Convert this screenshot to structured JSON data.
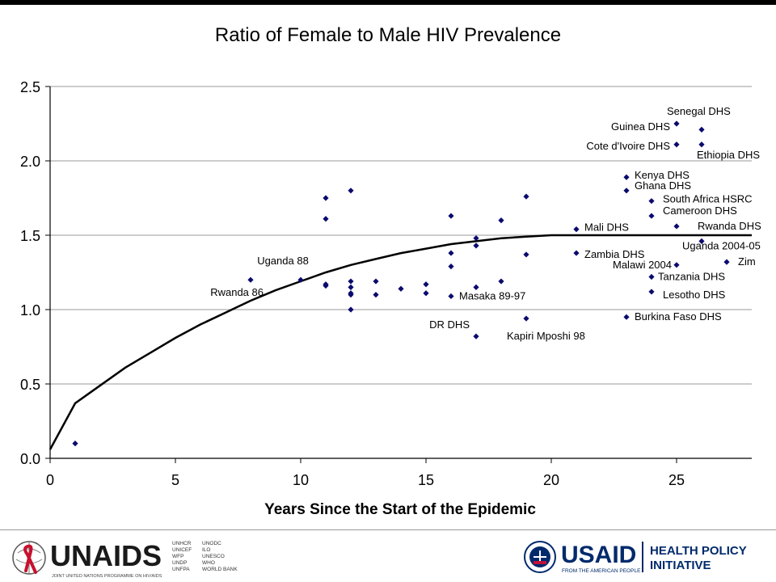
{
  "chart_data": {
    "type": "scatter",
    "title": "Ratio of Female to Male HIV Prevalence",
    "xlabel": "Years Since the Start of the Epidemic",
    "ylabel": "",
    "xlim": [
      0,
      28
    ],
    "ylim": [
      0,
      2.5
    ],
    "xticks": [
      "0",
      "5",
      "10",
      "15",
      "20",
      "25"
    ],
    "yticks": [
      "0.0",
      "0.5",
      "1.0",
      "1.5",
      "2.0",
      "2.5"
    ],
    "grid": "horizontal",
    "marker_color": "#0a0a6e",
    "points": [
      [
        1,
        0.1
      ],
      [
        8,
        1.2
      ],
      [
        10,
        1.2
      ],
      [
        11,
        1.75
      ],
      [
        11,
        1.61
      ],
      [
        11,
        1.17
      ],
      [
        11,
        1.16
      ],
      [
        12,
        1.8
      ],
      [
        12,
        1.19
      ],
      [
        12,
        1.15
      ],
      [
        12,
        1.11
      ],
      [
        12,
        1.1
      ],
      [
        12,
        1.0
      ],
      [
        13,
        1.19
      ],
      [
        13,
        1.1
      ],
      [
        14,
        1.14
      ],
      [
        15,
        1.17
      ],
      [
        15,
        1.11
      ],
      [
        16,
        1.63
      ],
      [
        16,
        1.38
      ],
      [
        16,
        1.29
      ],
      [
        16,
        1.09
      ],
      [
        17,
        1.48
      ],
      [
        17,
        1.43
      ],
      [
        17,
        1.15
      ],
      [
        17,
        0.82
      ],
      [
        18,
        1.6
      ],
      [
        18,
        1.19
      ],
      [
        19,
        1.76
      ],
      [
        19,
        1.37
      ],
      [
        19,
        0.94
      ],
      [
        21,
        1.54
      ],
      [
        21,
        1.38
      ],
      [
        23,
        1.89
      ],
      [
        23,
        1.8
      ],
      [
        23,
        0.95
      ],
      [
        24,
        1.73
      ],
      [
        24,
        1.63
      ],
      [
        24,
        1.22
      ],
      [
        24,
        1.12
      ],
      [
        25,
        2.25
      ],
      [
        25,
        2.11
      ],
      [
        25,
        1.56
      ],
      [
        25,
        1.3
      ],
      [
        26,
        2.21
      ],
      [
        26,
        2.11
      ],
      [
        26,
        1.46
      ],
      [
        27,
        1.32
      ]
    ],
    "trend_curve": [
      [
        0,
        0.06
      ],
      [
        1,
        0.37
      ],
      [
        2,
        0.49
      ],
      [
        3,
        0.61
      ],
      [
        4,
        0.71
      ],
      [
        5,
        0.81
      ],
      [
        6,
        0.9
      ],
      [
        7,
        0.98
      ],
      [
        8,
        1.06
      ],
      [
        9,
        1.13
      ],
      [
        10,
        1.19
      ],
      [
        11,
        1.25
      ],
      [
        12,
        1.3
      ],
      [
        13,
        1.34
      ],
      [
        14,
        1.38
      ],
      [
        15,
        1.41
      ],
      [
        16,
        1.44
      ],
      [
        17,
        1.46
      ],
      [
        18,
        1.48
      ],
      [
        19,
        1.49
      ],
      [
        20,
        1.5
      ],
      [
        21,
        1.5
      ],
      [
        22,
        1.5
      ],
      [
        23,
        1.5
      ],
      [
        24,
        1.5
      ],
      [
        25,
        1.5
      ],
      [
        26,
        1.5
      ],
      [
        27,
        1.5
      ],
      [
        28,
        1.5
      ]
    ],
    "annotations": [
      {
        "text": "Senegal DHS",
        "x": 25,
        "y": 2.25,
        "anchor": "start",
        "dx": -12,
        "dy": -11
      },
      {
        "text": "Guinea DHS",
        "x": 25,
        "y": 2.25,
        "anchor": "end",
        "dx": -8,
        "dy": 8
      },
      {
        "text": "Cote d'Ivoire DHS",
        "x": 25,
        "y": 2.11,
        "anchor": "end",
        "dx": -8,
        "dy": 6
      },
      {
        "text": "Ethiopia DHS",
        "x": 26,
        "y": 2.11,
        "anchor": "start",
        "dx": -6,
        "dy": 17
      },
      {
        "text": "Kenya DHS",
        "x": 23,
        "y": 1.89,
        "anchor": "start",
        "dx": 10,
        "dy": 2
      },
      {
        "text": "Ghana DHS",
        "x": 23,
        "y": 1.8,
        "anchor": "start",
        "dx": 10,
        "dy": -2
      },
      {
        "text": "South Africa HSRC",
        "x": 24,
        "y": 1.73,
        "anchor": "start",
        "dx": 14,
        "dy": 2
      },
      {
        "text": "Cameroon DHS",
        "x": 24,
        "y": 1.63,
        "anchor": "start",
        "dx": 14,
        "dy": -2
      },
      {
        "text": "Mali DHS",
        "x": 21,
        "y": 1.54,
        "anchor": "start",
        "dx": 10,
        "dy": 2
      },
      {
        "text": "Rwanda DHS",
        "x": 25,
        "y": 1.56,
        "anchor": "start",
        "dx": 26,
        "dy": 4
      },
      {
        "text": "Uganda 2004-05",
        "x": 26,
        "y": 1.46,
        "anchor": "start",
        "dx": -24,
        "dy": 10
      },
      {
        "text": "Zambia DHS",
        "x": 21,
        "y": 1.38,
        "anchor": "start",
        "dx": 10,
        "dy": 6
      },
      {
        "text": "Malawi 2004",
        "x": 25,
        "y": 1.3,
        "anchor": "end",
        "dx": -6,
        "dy": 4
      },
      {
        "text": "Zim",
        "x": 27,
        "y": 1.32,
        "anchor": "start",
        "dx": 14,
        "dy": 4
      },
      {
        "text": "Tanzania DHS",
        "x": 24,
        "y": 1.22,
        "anchor": "start",
        "dx": 8,
        "dy": 4
      },
      {
        "text": "Lesotho DHS",
        "x": 24,
        "y": 1.12,
        "anchor": "start",
        "dx": 14,
        "dy": 8
      },
      {
        "text": "Burkina Faso DHS",
        "x": 23,
        "y": 0.95,
        "anchor": "start",
        "dx": 10,
        "dy": 4
      },
      {
        "text": "Uganda 88",
        "x": 10,
        "y": 1.2,
        "anchor": "middle",
        "dx": -22,
        "dy": -19
      },
      {
        "text": "Rwanda 86",
        "x": 8,
        "y": 1.2,
        "anchor": "end",
        "dx": 16,
        "dy": 20
      },
      {
        "text": "Masaka 89-97",
        "x": 16,
        "y": 1.09,
        "anchor": "start",
        "dx": 10,
        "dy": 4
      },
      {
        "text": "DR DHS",
        "x": 17,
        "y": 0.82,
        "anchor": "end",
        "dx": -8,
        "dy": -10
      },
      {
        "text": "Kapiri Mposhi 98",
        "x": 19,
        "y": 0.94,
        "anchor": "start",
        "dx": -24,
        "dy": 26
      }
    ]
  },
  "footer": {
    "unaids": {
      "name": "UNAIDS",
      "tagline": "JOINT UNITED NATIONS PROGRAMME ON HIV/AIDS",
      "cosponsors_col1": [
        "UNHCR",
        "UNICEF",
        "WFP",
        "UNDP",
        "UNFPA"
      ],
      "cosponsors_col2": [
        "UNODC",
        "ILO",
        "UNESCO",
        "WHO",
        "WORLD BANK"
      ],
      "brand_color": "#1a1a1a",
      "ribbon_color": "#c8102e"
    },
    "usaid": {
      "name": "USAID",
      "tagline": "FROM THE AMERICAN PEOPLE",
      "initiative_line1": "HEALTH POLICY",
      "initiative_line2": "INITIATIVE",
      "brand_color": "#002a6c",
      "accent_color": "#c2113a"
    }
  }
}
